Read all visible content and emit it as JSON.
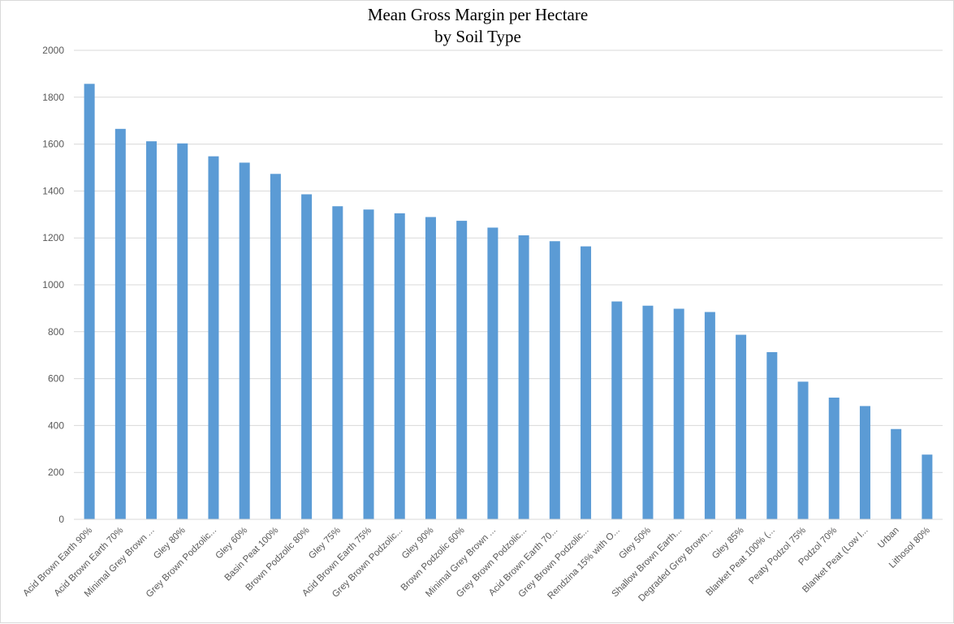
{
  "chart_data": {
    "type": "bar",
    "title": "Mean Gross Margin per Hectare",
    "subtitle": "by Soil Type",
    "xlabel": "",
    "ylabel": "",
    "ylim": [
      0,
      2000
    ],
    "yticks": [
      0,
      200,
      400,
      600,
      800,
      1000,
      1200,
      1400,
      1600,
      1800,
      2000
    ],
    "grid": true,
    "legend": "none",
    "bar_color": "#5b9bd5",
    "categories": [
      "Acid Brown Earth 90%",
      "Acid Brown Earth 70%",
      "Minimal Grey Brown ...",
      "Gley 80%",
      "Grey Brown Podzolic...",
      "Gley 60%",
      "Basin Peat 100%",
      "Brown Podzolic 80%",
      "Gley 75%",
      "Acid Brown Earth 75%",
      "Grey Brown Podzolic...",
      "Gley 90%",
      "Brown Podzolic 60%",
      "Minimal Grey Brown ...",
      "Grey Brown Podzolic...",
      "Acid Brown Earth 70...",
      "Grey Brown Podzolic...",
      "Rendzina 15% with O...",
      "Gley 50%",
      "Shallow Brown Earth...",
      "Degraded Grey Brown...",
      "Gley 85%",
      "Blanket Peat 100% (...",
      "Peaty Podzol 75%",
      "Podzol 70%",
      "Blanket Peat (Low l...",
      "Urban",
      "Lithosol 80%"
    ],
    "values": [
      1857,
      1665,
      1612,
      1603,
      1548,
      1521,
      1473,
      1386,
      1335,
      1321,
      1305,
      1289,
      1273,
      1244,
      1211,
      1186,
      1164,
      929,
      911,
      898,
      884,
      787,
      713,
      587,
      519,
      483,
      385,
      276
    ]
  }
}
